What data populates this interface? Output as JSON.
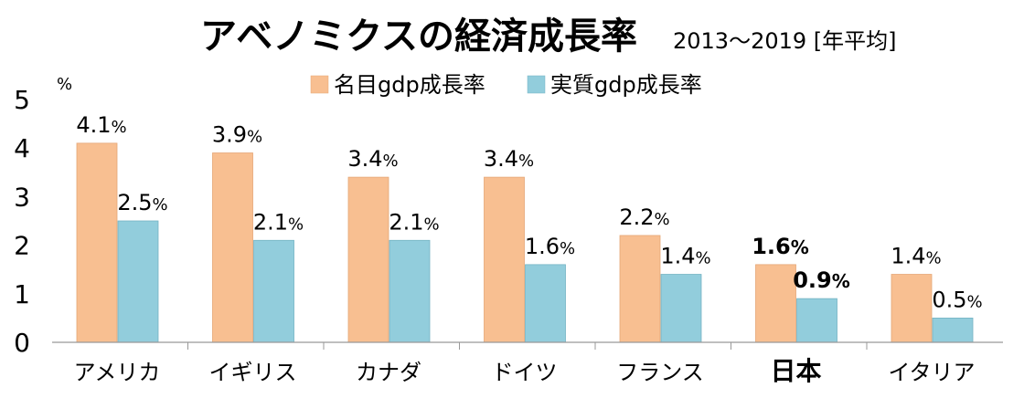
{
  "chart_data": {
    "type": "bar",
    "title": "アベノミクスの経済成長率",
    "subtitle": "2013～2019 [年平均]",
    "ylabel": "%",
    "ylim": [
      0,
      5
    ],
    "yticks": [
      "0",
      "1",
      "2",
      "3",
      "4",
      "5"
    ],
    "categories": [
      "アメリカ",
      "イギリス",
      "カナダ",
      "ドイツ",
      "フランス",
      "日本",
      "イタリア"
    ],
    "highlight_category": "日本",
    "series": [
      {
        "name": "名目gdp成長率",
        "color": "#F8BF91",
        "values": [
          4.1,
          3.9,
          3.4,
          3.4,
          2.2,
          1.6,
          1.4
        ],
        "labels": [
          "4.1%",
          "3.9%",
          "3.4%",
          "3.4%",
          "2.2%",
          "1.6%",
          "1.4%"
        ]
      },
      {
        "name": "実質gdp成長率",
        "color": "#92CDDC",
        "values": [
          2.5,
          2.1,
          2.1,
          1.6,
          1.4,
          0.9,
          0.5
        ],
        "labels": [
          "2.5%",
          "2.1%",
          "2.1%",
          "1.6%",
          "1.4%",
          "0.9%",
          "0.5%"
        ]
      }
    ]
  }
}
